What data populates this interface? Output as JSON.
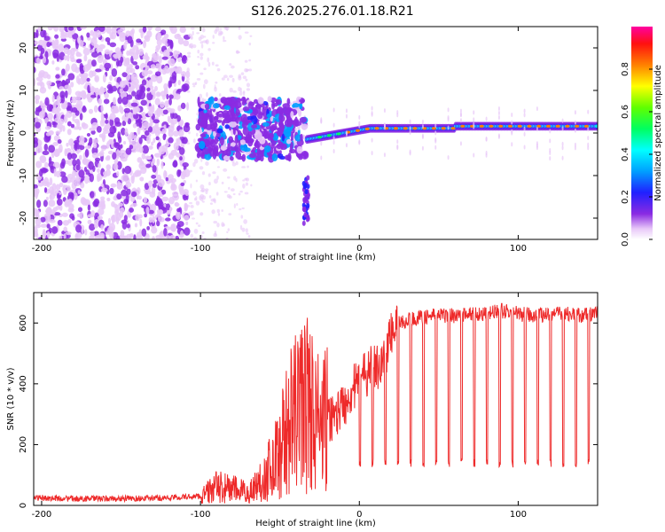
{
  "title": "S126.2025.276.01.18.R21",
  "colors": {
    "snr_line": "#ee2a2a",
    "axis": "#000000",
    "background": "#ffffff"
  },
  "chart_data": [
    {
      "type": "heatmap",
      "name": "spectrogram",
      "xlabel": "Height of straight line (km)",
      "ylabel": "Frequency (Hz)",
      "xlim": [
        -205,
        150
      ],
      "ylim": [
        -25,
        25
      ],
      "xticks": [
        -200,
        -100,
        0,
        100
      ],
      "xtick_labels": [
        "-200",
        "-100",
        "0",
        "100"
      ],
      "yticks": [
        -20,
        -10,
        0,
        10,
        20
      ],
      "ytick_labels": [
        "-20",
        "-10",
        "0",
        "10",
        "20"
      ],
      "colorbar": {
        "label": "Normalized spectral amplitude",
        "range": [
          0,
          1
        ],
        "ticks": [
          0.0,
          0.2,
          0.4,
          0.6,
          0.8
        ],
        "tick_labels": [
          "0.0",
          "0.2",
          "0.4",
          "0.6",
          "0.8"
        ]
      },
      "description_regions": [
        {
          "x_range": [
            -205,
            -108
          ],
          "content": "diffuse noise, amplitude ~0.05-0.2"
        },
        {
          "x_range": [
            -100,
            -35
          ],
          "content": "scattered blobs around 0 Hz, amplitude ~0.2-0.4"
        },
        {
          "x_range": [
            -35,
            -33
          ],
          "y_range": [
            -22,
            -10
          ],
          "content": "narrow vertical feature"
        },
        {
          "x_range": [
            -32,
            150
          ],
          "frequency_hz_start": -1.5,
          "frequency_hz_end": 1.8,
          "content": "carrier line, amplitude up to ~0.9"
        }
      ]
    },
    {
      "type": "line",
      "name": "snr",
      "xlabel": "Height of straight line (km)",
      "ylabel": "SNR (10 * v/v)",
      "xlim": [
        -205,
        150
      ],
      "ylim": [
        0,
        700
      ],
      "xticks": [
        -200,
        -100,
        0,
        100
      ],
      "xtick_labels": [
        "-200",
        "-100",
        "0",
        "100"
      ],
      "yticks": [
        0,
        200,
        400,
        600
      ],
      "ytick_labels": [
        "0",
        "200",
        "400",
        "600"
      ],
      "series": [
        {
          "name": "SNR",
          "color": "#ee2a2a",
          "x": [
            -205,
            -180,
            -150,
            -120,
            -100,
            -90,
            -80,
            -70,
            -60,
            -50,
            -45,
            -40,
            -35,
            -30,
            -25,
            -20,
            -15,
            -10,
            -5,
            0,
            5,
            10,
            15,
            20,
            25,
            30,
            35,
            40,
            50,
            60,
            70,
            80,
            90,
            100,
            110,
            120,
            130,
            140,
            150
          ],
          "y": [
            25,
            22,
            22,
            25,
            30,
            60,
            55,
            40,
            90,
            180,
            260,
            300,
            350,
            320,
            260,
            280,
            300,
            330,
            380,
            400,
            440,
            450,
            480,
            560,
            600,
            610,
            615,
            620,
            625,
            625,
            630,
            630,
            640,
            630,
            625,
            630,
            630,
            625,
            630
          ],
          "dropout_floor": 140,
          "dropout_start_x": 0,
          "dropout_spacing_km": 8
        }
      ]
    }
  ]
}
